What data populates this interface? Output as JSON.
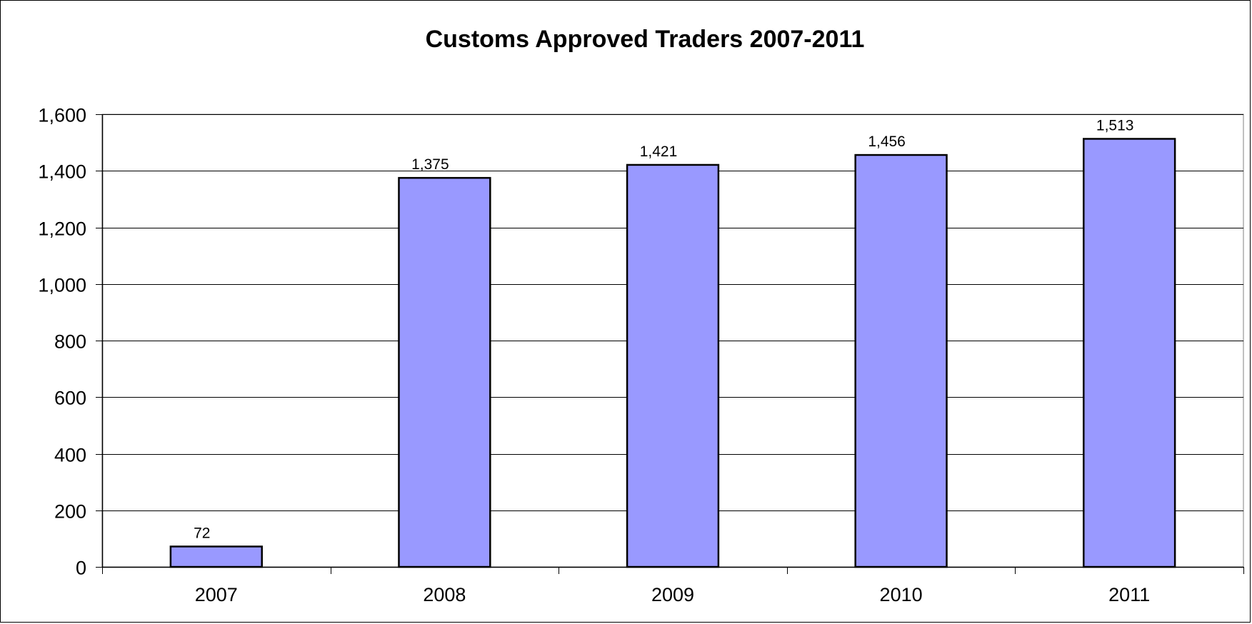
{
  "chart_data": {
    "type": "bar",
    "title": "Customs Approved Traders 2007-2011",
    "categories": [
      "2007",
      "2008",
      "2009",
      "2010",
      "2011"
    ],
    "values": [
      72,
      1375,
      1421,
      1456,
      1513
    ],
    "data_labels": [
      "72",
      "1,375",
      "1,421",
      "1,456",
      "1,513"
    ],
    "y_ticks": [
      0,
      200,
      400,
      600,
      800,
      1000,
      1200,
      1400,
      1600
    ],
    "y_tick_labels": [
      "0",
      "200",
      "400",
      "600",
      "800",
      "1,000",
      "1,200",
      "1,400",
      "1,600"
    ],
    "ylim": [
      0,
      1600
    ],
    "xlabel": "",
    "ylabel": "",
    "grid": true,
    "legend": "none",
    "colors": {
      "bar_fill": "#9999ff",
      "bar_stroke": "#000000",
      "grid": "#000000",
      "background": "#ffffff"
    }
  }
}
